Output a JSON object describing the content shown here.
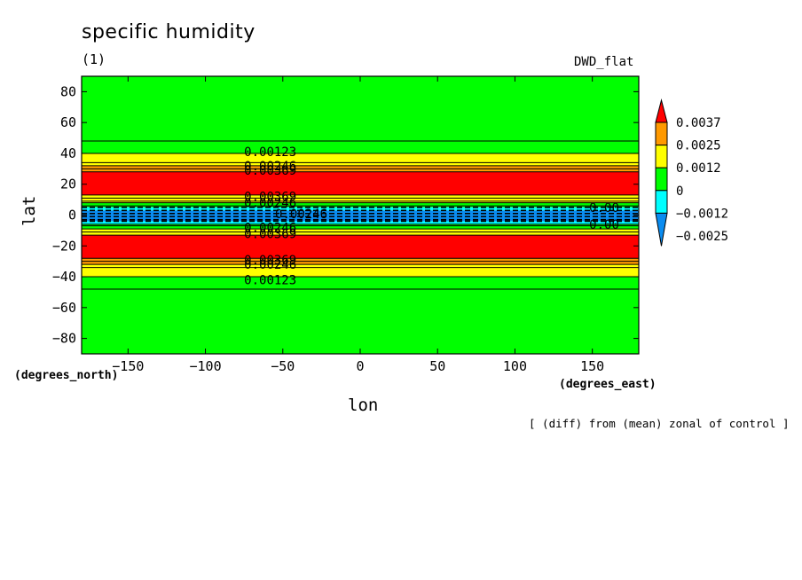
{
  "header": {
    "title": "specific humidity",
    "subtitle": "(1)",
    "model": "DWD_flat",
    "note": "[ (diff) from (mean) zonal of control ]"
  },
  "axes": {
    "xlabel": "lon",
    "xunits": "(degrees_east)",
    "ylabel": "lat",
    "yunits": "(degrees_north)"
  },
  "colors": {
    "neg2": "#0a8cf0",
    "neg1": "#00ffff",
    "zero": "#00ff00",
    "pos1": "#ffff00",
    "pos2": "#ff9900",
    "pos3": "#ff0000"
  },
  "chart_data": {
    "type": "heatmap",
    "title": "specific humidity",
    "xlabel": "lon",
    "ylabel": "lat",
    "xlim": [
      -180,
      180
    ],
    "ylim": [
      -90,
      90
    ],
    "xticks": [
      -150,
      -100,
      -50,
      0,
      50,
      100,
      150
    ],
    "yticks": [
      -80,
      -60,
      -40,
      -20,
      0,
      20,
      40,
      60,
      80
    ],
    "colorbar": {
      "labels": [
        "0.0037",
        "0.0025",
        "0.0012",
        "0",
        "-0.0012",
        "-0.0025"
      ],
      "levels": [
        0.0037,
        0.0025,
        0.0012,
        0,
        -0.0012,
        -0.0025
      ]
    },
    "bands": [
      {
        "lat_from": 48,
        "lat_to": 90,
        "color": "zero"
      },
      {
        "lat_from": 40,
        "lat_to": 48,
        "color": "zero"
      },
      {
        "lat_from": 32,
        "lat_to": 40,
        "color": "pos1"
      },
      {
        "lat_from": 28,
        "lat_to": 32,
        "color": "pos2"
      },
      {
        "lat_from": 13,
        "lat_to": 28,
        "color": "pos3"
      },
      {
        "lat_from": 8,
        "lat_to": 13,
        "color": "pos1"
      },
      {
        "lat_from": 5,
        "lat_to": 8,
        "color": "zero"
      },
      {
        "lat_from": 3,
        "lat_to": 5,
        "color": "neg1"
      },
      {
        "lat_from": -4,
        "lat_to": 3,
        "color": "neg2"
      },
      {
        "lat_from": -6,
        "lat_to": -4,
        "color": "neg1"
      },
      {
        "lat_from": -9,
        "lat_to": -6,
        "color": "zero"
      },
      {
        "lat_from": -13,
        "lat_to": -9,
        "color": "pos1"
      },
      {
        "lat_from": -28,
        "lat_to": -13,
        "color": "pos3"
      },
      {
        "lat_from": -32,
        "lat_to": -28,
        "color": "pos2"
      },
      {
        "lat_from": -40,
        "lat_to": -32,
        "color": "pos1"
      },
      {
        "lat_from": -48,
        "lat_to": -40,
        "color": "zero"
      },
      {
        "lat_from": -90,
        "lat_to": -48,
        "color": "zero"
      }
    ],
    "contour_lines": [
      48,
      40,
      34,
      32,
      30,
      28,
      13,
      11,
      9,
      8,
      6,
      5,
      3,
      1,
      -1,
      -3,
      -4,
      -6,
      -7,
      -9,
      -11,
      -13,
      -28,
      -30,
      -32,
      -34,
      -40,
      -48
    ],
    "contour_labels": [
      {
        "lon": -75,
        "lat": 41,
        "text": "0.00123"
      },
      {
        "lon": -75,
        "lat": 32,
        "text": "0.00246"
      },
      {
        "lon": -75,
        "lat": 29,
        "text": "0.00369"
      },
      {
        "lon": -75,
        "lat": 12,
        "text": "0.00369"
      },
      {
        "lon": -75,
        "lat": 8,
        "text": "0.00246"
      },
      {
        "lon": -55,
        "lat": 1,
        "text": "0.00246"
      },
      {
        "lon": -75,
        "lat": -8,
        "text": "0.00246"
      },
      {
        "lon": -75,
        "lat": -12,
        "text": "0.00369"
      },
      {
        "lon": -75,
        "lat": -29,
        "text": "0.00369"
      },
      {
        "lon": -75,
        "lat": -32,
        "text": "0.00246"
      },
      {
        "lon": -75,
        "lat": -42,
        "text": "0.00123"
      },
      {
        "lon": 148,
        "lat": 5,
        "text": "0.00"
      },
      {
        "lon": 148,
        "lat": -6,
        "text": "0.00"
      }
    ]
  }
}
